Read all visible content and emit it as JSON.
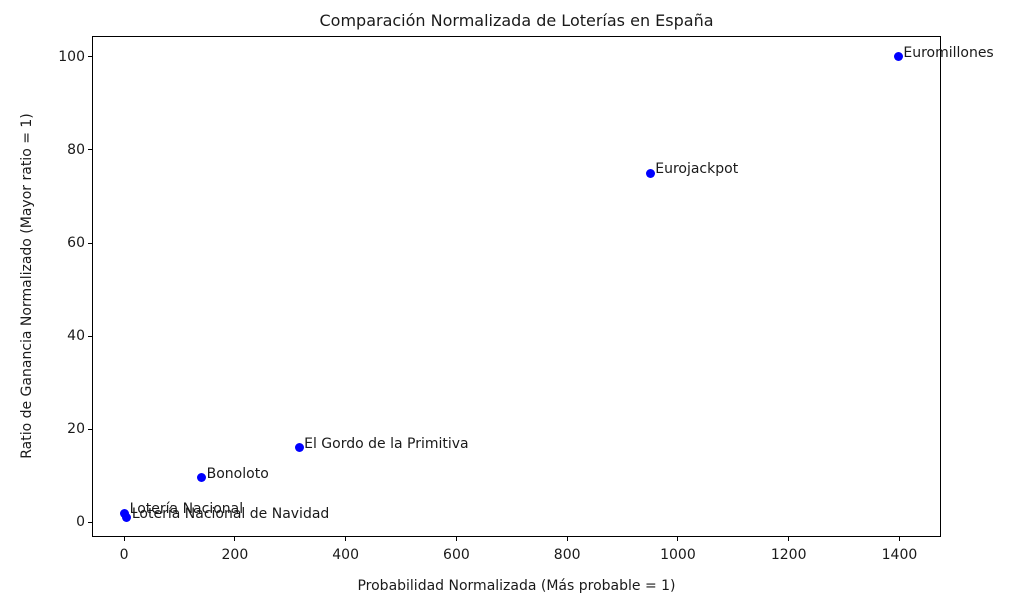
{
  "chart_data": {
    "type": "scatter",
    "title": "Comparación Normalizada de Loterías en España",
    "xlabel": "Probabilidad Normalizada (Más probable = 1)",
    "ylabel": "Ratio de Ganancia Normalizado (Mayor ratio = 1)",
    "points": [
      {
        "label": "Lotería Nacional",
        "x": 1,
        "y": 1.9
      },
      {
        "label": "Lotería Nacional de Navidad",
        "x": 5,
        "y": 0.9
      },
      {
        "label": "Bonoloto",
        "x": 140,
        "y": 9.5
      },
      {
        "label": "El Gordo de la Primitiva",
        "x": 316,
        "y": 16
      },
      {
        "label": "Eurojackpot",
        "x": 950,
        "y": 75
      },
      {
        "label": "Euromillones",
        "x": 1398,
        "y": 100
      }
    ],
    "x_ticks": [
      0,
      200,
      400,
      600,
      800,
      1000,
      1200,
      1400
    ],
    "y_ticks": [
      0,
      20,
      40,
      60,
      80,
      100
    ],
    "xlim": [
      -58,
      1475
    ],
    "ylim": [
      -3.2,
      104.5
    ],
    "marker_color": "#0000ff",
    "grid": false,
    "legend": "none"
  }
}
